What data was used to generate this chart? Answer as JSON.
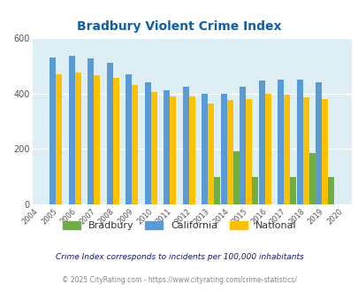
{
  "title": "Bradbury Violent Crime Index",
  "all_years": [
    2004,
    2005,
    2006,
    2007,
    2008,
    2009,
    2010,
    2011,
    2012,
    2013,
    2014,
    2015,
    2016,
    2017,
    2018,
    2019,
    2020
  ],
  "bar_years": [
    2005,
    2006,
    2007,
    2008,
    2009,
    2010,
    2011,
    2012,
    2013,
    2014,
    2015,
    2016,
    2017,
    2018,
    2019
  ],
  "california": [
    530,
    535,
    525,
    510,
    470,
    440,
    410,
    425,
    400,
    400,
    425,
    445,
    450,
    450,
    440
  ],
  "national": [
    470,
    475,
    465,
    455,
    430,
    405,
    390,
    390,
    365,
    375,
    380,
    400,
    395,
    385,
    380
  ],
  "bradbury": [
    0,
    0,
    0,
    0,
    0,
    0,
    0,
    0,
    100,
    190,
    100,
    0,
    100,
    185,
    100
  ],
  "color_california": "#5b9bd5",
  "color_national": "#ffc000",
  "color_bradbury": "#70ad47",
  "color_background": "#ddeef5",
  "color_title": "#1060a8",
  "ylim": [
    0,
    600
  ],
  "yticks": [
    0,
    200,
    400,
    600
  ],
  "subtitle": "Crime Index corresponds to incidents per 100,000 inhabitants",
  "footer": "© 2025 CityRating.com - https://www.cityrating.com/crime-statistics/",
  "bar_width": 0.32,
  "xlim_left": 2003.6,
  "xlim_right": 2020.4
}
